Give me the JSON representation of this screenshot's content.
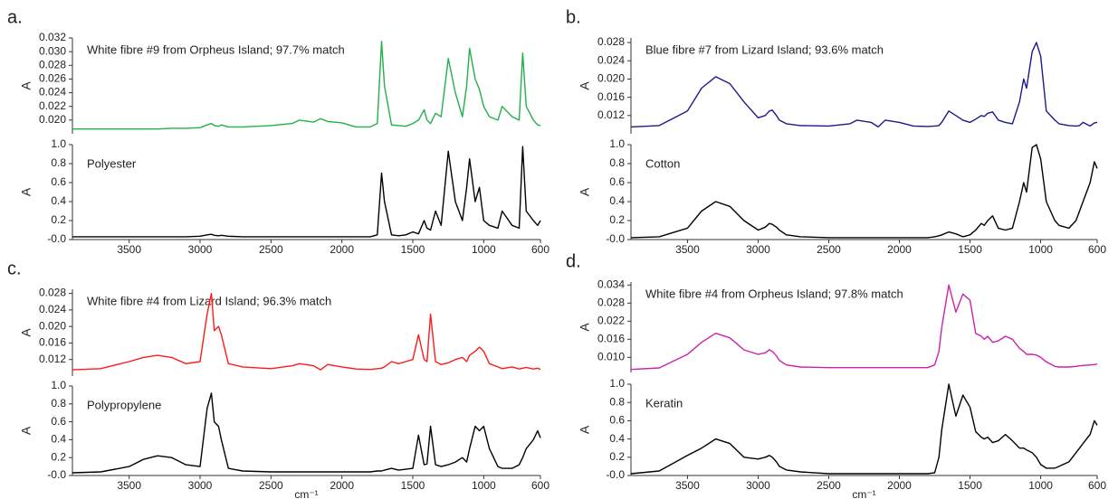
{
  "chart_data": [
    {
      "type": "line",
      "panel_label": "a.",
      "annotation": "White fibre #9 from Orpheus Island; 97.7% match",
      "ylabel": "A",
      "x": [
        3900,
        3700,
        3500,
        3400,
        3300,
        3200,
        3100,
        3000,
        2950,
        2920,
        2900,
        2870,
        2850,
        2800,
        2700,
        2500,
        2350,
        2300,
        2200,
        2150,
        2100,
        2000,
        1900,
        1800,
        1750,
        1720,
        1700,
        1650,
        1600,
        1550,
        1500,
        1460,
        1420,
        1400,
        1375,
        1340,
        1300,
        1250,
        1200,
        1150,
        1120,
        1100,
        1060,
        1030,
        1000,
        960,
        900,
        870,
        800,
        750,
        725,
        700,
        650,
        620,
        600
      ],
      "series": [
        {
          "color": "#22b04b",
          "values": [
            0.0187,
            0.0187,
            0.0187,
            0.0187,
            0.0187,
            0.0188,
            0.0188,
            0.0189,
            0.0193,
            0.0195,
            0.0192,
            0.0191,
            0.0193,
            0.019,
            0.019,
            0.0192,
            0.0195,
            0.02,
            0.0197,
            0.0202,
            0.0198,
            0.0196,
            0.019,
            0.019,
            0.0195,
            0.0315,
            0.025,
            0.0193,
            0.0192,
            0.0191,
            0.0195,
            0.02,
            0.0215,
            0.02,
            0.0195,
            0.021,
            0.0205,
            0.029,
            0.024,
            0.0205,
            0.025,
            0.0305,
            0.026,
            0.0245,
            0.022,
            0.0205,
            0.02,
            0.022,
            0.0205,
            0.02,
            0.0298,
            0.022,
            0.02,
            0.0193,
            0.0192
          ]
        }
      ],
      "xlim": [
        3900,
        600
      ],
      "ylim": [
        0.018,
        0.032
      ],
      "yticks": [
        {
          "value": 0.02,
          "label": "0.020"
        },
        0.022,
        0.024,
        0.026,
        0.028,
        {
          "value": 0.03,
          "label": "0.030"
        },
        0.032
      ]
    },
    {
      "type": "line",
      "annotation": "Polyester",
      "ylabel": "A",
      "x": [
        3900,
        3700,
        3500,
        3400,
        3300,
        3200,
        3100,
        3000,
        2950,
        2920,
        2900,
        2870,
        2850,
        2800,
        2700,
        2500,
        2350,
        2300,
        2200,
        2150,
        2100,
        2000,
        1900,
        1800,
        1750,
        1720,
        1700,
        1650,
        1600,
        1550,
        1500,
        1460,
        1420,
        1400,
        1375,
        1340,
        1300,
        1250,
        1200,
        1150,
        1120,
        1100,
        1060,
        1030,
        1000,
        960,
        900,
        870,
        800,
        750,
        725,
        700,
        650,
        620,
        600
      ],
      "series": [
        {
          "color": "#000000",
          "values": [
            0.03,
            0.03,
            0.03,
            0.03,
            0.03,
            0.03,
            0.03,
            0.035,
            0.05,
            0.055,
            0.045,
            0.04,
            0.045,
            0.035,
            0.03,
            0.03,
            0.03,
            0.03,
            0.03,
            0.03,
            0.03,
            0.03,
            0.03,
            0.03,
            0.05,
            0.7,
            0.4,
            0.05,
            0.04,
            0.05,
            0.08,
            0.06,
            0.2,
            0.12,
            0.1,
            0.3,
            0.15,
            0.93,
            0.4,
            0.2,
            0.55,
            0.85,
            0.4,
            0.55,
            0.2,
            0.15,
            0.12,
            0.3,
            0.15,
            0.12,
            0.98,
            0.3,
            0.2,
            0.15,
            0.2
          ]
        }
      ],
      "xlim": [
        3900,
        600
      ],
      "ylim": [
        0,
        1
      ],
      "yticks": [
        {
          "value": 0,
          "label": "-0.0"
        },
        0.2,
        0.4,
        0.6,
        0.8,
        {
          "value": 1,
          "label": "1.0"
        }
      ],
      "xticks": [
        3500,
        3000,
        2500,
        2000,
        1500,
        1000,
        600
      ]
    },
    {
      "type": "line",
      "panel_label": "b.",
      "annotation": "Blue fibre #7 from Lizard Island; 93.6% match",
      "ylabel": "A",
      "x": [
        3900,
        3700,
        3500,
        3400,
        3300,
        3200,
        3100,
        3000,
        2950,
        2920,
        2900,
        2870,
        2850,
        2800,
        2700,
        2500,
        2350,
        2300,
        2200,
        2150,
        2100,
        2000,
        1900,
        1800,
        1750,
        1720,
        1700,
        1650,
        1600,
        1550,
        1500,
        1460,
        1420,
        1400,
        1375,
        1340,
        1300,
        1250,
        1200,
        1150,
        1120,
        1100,
        1060,
        1030,
        1000,
        960,
        900,
        870,
        800,
        750,
        725,
        700,
        650,
        620,
        600
      ],
      "series": [
        {
          "color": "#1a1a8c",
          "values": [
            0.0095,
            0.0098,
            0.013,
            0.018,
            0.0205,
            0.019,
            0.015,
            0.0115,
            0.012,
            0.013,
            0.0132,
            0.012,
            0.011,
            0.0102,
            0.0098,
            0.0097,
            0.0102,
            0.011,
            0.0105,
            0.0095,
            0.011,
            0.0105,
            0.0097,
            0.0096,
            0.0097,
            0.0098,
            0.0105,
            0.013,
            0.012,
            0.011,
            0.0105,
            0.0112,
            0.012,
            0.0118,
            0.0125,
            0.0128,
            0.011,
            0.0105,
            0.0102,
            0.015,
            0.02,
            0.018,
            0.026,
            0.028,
            0.025,
            0.013,
            0.011,
            0.0102,
            0.0098,
            0.0097,
            0.0098,
            0.0105,
            0.0097,
            0.0104,
            0.0105
          ]
        }
      ],
      "xlim": [
        3900,
        600
      ],
      "ylim": [
        0.008,
        0.029
      ],
      "yticks": [
        0.012,
        0.016,
        {
          "value": 0.02,
          "label": "0.020"
        },
        0.024,
        0.028
      ]
    },
    {
      "type": "line",
      "annotation": "Cotton",
      "ylabel": "A",
      "x": [
        3900,
        3700,
        3500,
        3400,
        3300,
        3200,
        3100,
        3000,
        2950,
        2920,
        2900,
        2870,
        2850,
        2800,
        2700,
        2500,
        2350,
        2300,
        2200,
        2150,
        2100,
        2000,
        1900,
        1800,
        1750,
        1720,
        1700,
        1650,
        1600,
        1550,
        1500,
        1460,
        1420,
        1400,
        1375,
        1340,
        1300,
        1250,
        1200,
        1150,
        1120,
        1100,
        1060,
        1030,
        1000,
        960,
        900,
        870,
        800,
        750,
        725,
        700,
        650,
        620,
        600
      ],
      "series": [
        {
          "color": "#000000",
          "values": [
            0.02,
            0.03,
            0.12,
            0.3,
            0.4,
            0.35,
            0.2,
            0.1,
            0.13,
            0.17,
            0.16,
            0.13,
            0.1,
            0.05,
            0.03,
            0.02,
            0.02,
            0.02,
            0.02,
            0.02,
            0.02,
            0.02,
            0.02,
            0.02,
            0.03,
            0.04,
            0.05,
            0.08,
            0.06,
            0.03,
            0.05,
            0.1,
            0.17,
            0.15,
            0.2,
            0.25,
            0.12,
            0.1,
            0.12,
            0.4,
            0.6,
            0.5,
            0.97,
            1.0,
            0.85,
            0.4,
            0.2,
            0.15,
            0.12,
            0.2,
            0.3,
            0.4,
            0.6,
            0.82,
            0.75
          ]
        }
      ],
      "xlim": [
        3900,
        600
      ],
      "ylim": [
        0,
        1
      ],
      "yticks": [
        {
          "value": 0,
          "label": "-0.0"
        },
        0.2,
        0.4,
        0.6,
        0.8,
        {
          "value": 1,
          "label": "1.0"
        }
      ],
      "xticks": [
        3500,
        3000,
        2500,
        2000,
        1500,
        1000,
        600
      ]
    },
    {
      "type": "line",
      "panel_label": "c.",
      "annotation": "White fibre #4 from Lizard Island; 96.3% match",
      "ylabel": "A",
      "x": [
        3900,
        3700,
        3500,
        3400,
        3300,
        3200,
        3100,
        3000,
        2950,
        2920,
        2900,
        2870,
        2850,
        2800,
        2700,
        2500,
        2350,
        2300,
        2200,
        2150,
        2100,
        2000,
        1900,
        1800,
        1750,
        1720,
        1700,
        1650,
        1600,
        1550,
        1500,
        1460,
        1420,
        1400,
        1375,
        1340,
        1300,
        1250,
        1200,
        1150,
        1120,
        1100,
        1060,
        1030,
        1000,
        960,
        900,
        870,
        800,
        750,
        725,
        700,
        650,
        620,
        600
      ],
      "series": [
        {
          "color": "#ff1a1a",
          "values": [
            0.0095,
            0.0098,
            0.0115,
            0.0125,
            0.013,
            0.0125,
            0.011,
            0.0115,
            0.023,
            0.028,
            0.019,
            0.02,
            0.018,
            0.011,
            0.0102,
            0.0098,
            0.0105,
            0.011,
            0.0105,
            0.0095,
            0.0108,
            0.0102,
            0.0097,
            0.0096,
            0.0098,
            0.0099,
            0.0102,
            0.0115,
            0.011,
            0.0115,
            0.012,
            0.018,
            0.012,
            0.0115,
            0.023,
            0.0115,
            0.0108,
            0.0112,
            0.012,
            0.0125,
            0.0115,
            0.013,
            0.014,
            0.015,
            0.014,
            0.011,
            0.0102,
            0.0098,
            0.0102,
            0.0097,
            0.0099,
            0.0101,
            0.0097,
            0.0099,
            0.0096
          ]
        }
      ],
      "xlim": [
        3900,
        600
      ],
      "ylim": [
        0.008,
        0.029
      ],
      "yticks": [
        0.012,
        0.016,
        {
          "value": 0.02,
          "label": "0.020"
        },
        0.024,
        0.028
      ]
    },
    {
      "type": "line",
      "annotation": "Polypropylene",
      "ylabel": "A",
      "xlabel": "cm⁻¹",
      "x": [
        3900,
        3700,
        3500,
        3400,
        3300,
        3200,
        3100,
        3000,
        2950,
        2920,
        2900,
        2870,
        2850,
        2800,
        2700,
        2500,
        2350,
        2300,
        2200,
        2150,
        2100,
        2000,
        1900,
        1800,
        1750,
        1720,
        1700,
        1650,
        1600,
        1550,
        1500,
        1460,
        1420,
        1400,
        1375,
        1340,
        1300,
        1250,
        1200,
        1150,
        1120,
        1100,
        1060,
        1030,
        1000,
        960,
        900,
        870,
        800,
        750,
        725,
        700,
        650,
        620,
        600
      ],
      "series": [
        {
          "color": "#000000",
          "values": [
            0.03,
            0.04,
            0.1,
            0.18,
            0.22,
            0.2,
            0.12,
            0.1,
            0.75,
            0.92,
            0.6,
            0.55,
            0.4,
            0.08,
            0.05,
            0.04,
            0.04,
            0.04,
            0.04,
            0.04,
            0.04,
            0.04,
            0.04,
            0.04,
            0.05,
            0.05,
            0.06,
            0.08,
            0.06,
            0.07,
            0.08,
            0.45,
            0.12,
            0.13,
            0.55,
            0.12,
            0.1,
            0.12,
            0.15,
            0.2,
            0.15,
            0.3,
            0.55,
            0.5,
            0.55,
            0.3,
            0.1,
            0.08,
            0.08,
            0.12,
            0.2,
            0.3,
            0.4,
            0.5,
            0.42
          ]
        }
      ],
      "xlim": [
        3900,
        600
      ],
      "ylim": [
        0,
        1
      ],
      "yticks": [
        {
          "value": 0,
          "label": "-0.0"
        },
        0.2,
        0.4,
        0.6,
        0.8,
        {
          "value": 1,
          "label": "1.0"
        }
      ],
      "xticks": [
        3500,
        3000,
        2500,
        2000,
        1500,
        1000,
        600
      ]
    },
    {
      "type": "line",
      "panel_label": "d.",
      "annotation": "White fibre #4 from Orpheus Island; 97.8% match",
      "ylabel": "A",
      "x": [
        3900,
        3700,
        3500,
        3400,
        3300,
        3200,
        3100,
        3000,
        2950,
        2920,
        2900,
        2870,
        2850,
        2800,
        2700,
        2500,
        2350,
        2300,
        2200,
        2150,
        2100,
        2000,
        1900,
        1800,
        1750,
        1720,
        1700,
        1650,
        1600,
        1550,
        1500,
        1460,
        1420,
        1400,
        1375,
        1340,
        1300,
        1250,
        1200,
        1150,
        1120,
        1100,
        1060,
        1030,
        1000,
        960,
        900,
        870,
        800,
        750,
        725,
        700,
        650,
        620,
        600
      ],
      "series": [
        {
          "color": "#cc22aa",
          "values": [
            0.006,
            0.0065,
            0.011,
            0.015,
            0.018,
            0.0165,
            0.0125,
            0.011,
            0.0115,
            0.0125,
            0.012,
            0.0105,
            0.009,
            0.0075,
            0.0068,
            0.0066,
            0.0066,
            0.0066,
            0.0066,
            0.0066,
            0.0066,
            0.0066,
            0.0066,
            0.0066,
            0.0075,
            0.012,
            0.02,
            0.034,
            0.025,
            0.031,
            0.029,
            0.018,
            0.017,
            0.016,
            0.017,
            0.015,
            0.0155,
            0.017,
            0.016,
            0.013,
            0.012,
            0.011,
            0.011,
            0.0108,
            0.01,
            0.0085,
            0.007,
            0.0068,
            0.0068,
            0.007,
            0.0072,
            0.0073,
            0.0075,
            0.0076,
            0.0078
          ]
        }
      ],
      "xlim": [
        3900,
        600
      ],
      "ylim": [
        0.005,
        0.035
      ],
      "yticks": [
        {
          "value": 0.01,
          "label": "0.010"
        },
        0.016,
        0.022,
        0.028,
        0.034
      ]
    },
    {
      "type": "line",
      "annotation": "Keratin",
      "ylabel": "A",
      "xlabel": "cm⁻¹",
      "x": [
        3900,
        3700,
        3500,
        3400,
        3300,
        3200,
        3100,
        3000,
        2950,
        2920,
        2900,
        2870,
        2850,
        2800,
        2700,
        2500,
        2350,
        2300,
        2200,
        2150,
        2100,
        2000,
        1900,
        1800,
        1750,
        1720,
        1700,
        1650,
        1600,
        1550,
        1500,
        1460,
        1420,
        1400,
        1375,
        1340,
        1300,
        1250,
        1200,
        1150,
        1120,
        1100,
        1060,
        1030,
        1000,
        960,
        900,
        870,
        800,
        750,
        725,
        700,
        650,
        620,
        600
      ],
      "series": [
        {
          "color": "#000000",
          "values": [
            0.02,
            0.05,
            0.22,
            0.3,
            0.4,
            0.35,
            0.2,
            0.18,
            0.2,
            0.22,
            0.2,
            0.15,
            0.1,
            0.06,
            0.04,
            0.02,
            0.02,
            0.02,
            0.02,
            0.02,
            0.02,
            0.02,
            0.02,
            0.02,
            0.03,
            0.2,
            0.5,
            1.0,
            0.65,
            0.88,
            0.75,
            0.48,
            0.42,
            0.4,
            0.42,
            0.36,
            0.38,
            0.45,
            0.38,
            0.3,
            0.3,
            0.28,
            0.25,
            0.2,
            0.12,
            0.08,
            0.08,
            0.1,
            0.15,
            0.25,
            0.3,
            0.35,
            0.45,
            0.6,
            0.55
          ]
        }
      ],
      "xlim": [
        3900,
        600
      ],
      "ylim": [
        0,
        1
      ],
      "yticks": [
        {
          "value": 0,
          "label": "-0.0"
        },
        0.2,
        0.4,
        0.6,
        0.8,
        {
          "value": 1,
          "label": "1.0"
        }
      ],
      "xticks": [
        3500,
        3000,
        2500,
        2000,
        1500,
        1000,
        600
      ]
    }
  ]
}
